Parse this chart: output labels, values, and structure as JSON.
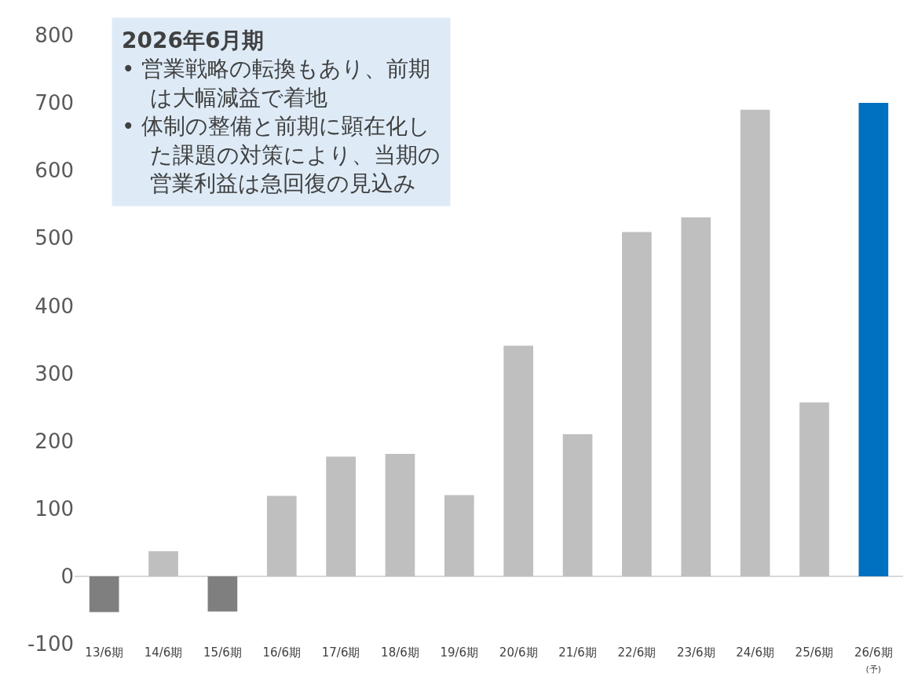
{
  "chart_data": {
    "type": "bar",
    "categories": [
      "13/6期",
      "14/6期",
      "15/6期",
      "16/6期",
      "17/6期",
      "18/6期",
      "19/6期",
      "20/6期",
      "21/6期",
      "22/6期",
      "23/6期",
      "24/6期",
      "25/6期",
      "26/6期\n(予)"
    ],
    "values": [
      -53,
      37,
      -52,
      119,
      177,
      181,
      120,
      341,
      210,
      509,
      531,
      690,
      257,
      700
    ],
    "colors": [
      "#7f7f7f",
      "#bfbfbf",
      "#7f7f7f",
      "#bfbfbf",
      "#bfbfbf",
      "#bfbfbf",
      "#bfbfbf",
      "#bfbfbf",
      "#bfbfbf",
      "#bfbfbf",
      "#bfbfbf",
      "#bfbfbf",
      "#bfbfbf",
      "#0070c0"
    ],
    "ylim": [
      -100,
      800
    ],
    "yticks": [
      -100,
      0,
      100,
      200,
      300,
      400,
      500,
      600,
      700,
      800
    ],
    "annotations": [
      "2026年6月期",
      "• 営業戦略の転換もあり、前期は大幅減益で着地",
      "• 体制の整備と前期に顕在化した課題の対策により、当期の営業利益は急回復の見込み"
    ]
  }
}
